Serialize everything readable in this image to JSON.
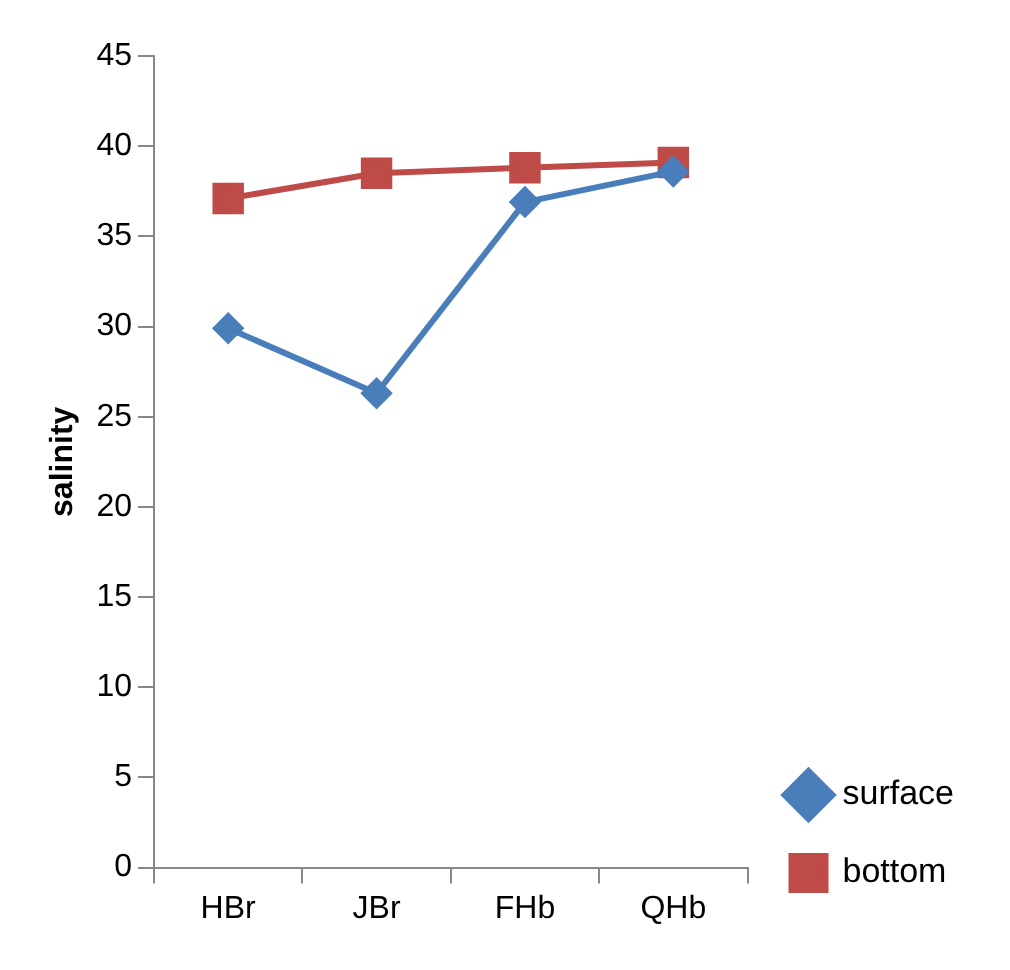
{
  "chart_data": {
    "type": "line",
    "ylabel": "salinity",
    "categories": [
      "HBr",
      "JBr",
      "FHb",
      "QHb"
    ],
    "series": [
      {
        "name": "surface",
        "color": "#4a7ebb",
        "marker": "diamond",
        "values": [
          29.9,
          26.3,
          36.9,
          38.6
        ]
      },
      {
        "name": "bottom",
        "color": "#be4b48",
        "marker": "square",
        "values": [
          37.1,
          38.5,
          38.8,
          39.1
        ]
      }
    ],
    "ylim": [
      0,
      45
    ],
    "yticks": [
      0,
      5,
      10,
      15,
      20,
      25,
      30,
      35,
      40,
      45
    ],
    "grid": false,
    "legend": "bottom right",
    "line_style": "solid"
  }
}
